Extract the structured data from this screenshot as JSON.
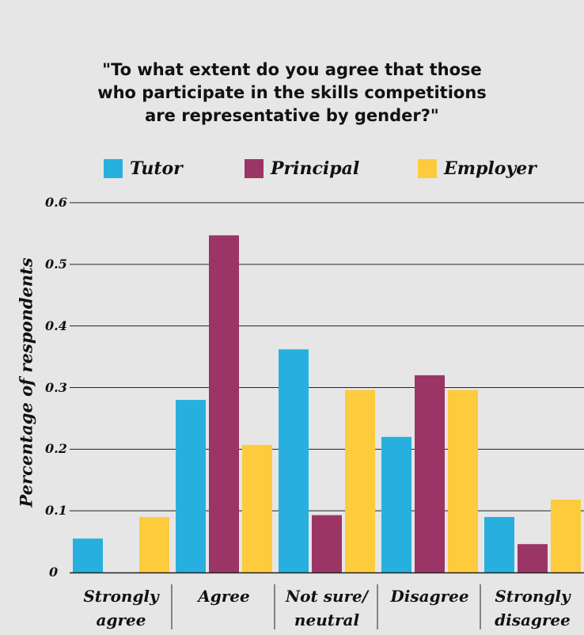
{
  "chart_data": {
    "type": "bar",
    "title_lines": [
      "\"To what extent do you agree that those",
      "who participate in the skills competitions",
      "are representative by gender?\""
    ],
    "ylabel": "Percentage of respondents",
    "ylim": [
      0,
      0.6
    ],
    "yticks": [
      "0",
      "0.1",
      "0.2",
      "0.3",
      "0.4",
      "0.5",
      "0.6"
    ],
    "categories": [
      [
        "Strongly",
        "agree"
      ],
      [
        "Agree"
      ],
      [
        "Not sure/",
        "neutral"
      ],
      [
        "Disagree"
      ],
      [
        "Strongly",
        "disagree"
      ]
    ],
    "series": [
      {
        "name": "Tutor",
        "color": "#27b0df",
        "values": [
          0.055,
          0.28,
          0.362,
          0.22,
          0.09
        ]
      },
      {
        "name": "Principal",
        "color": "#9b3566",
        "values": [
          0,
          0.547,
          0.093,
          0.32,
          0.046
        ]
      },
      {
        "name": "Employer",
        "color": "#fdcb3b",
        "values": [
          0.09,
          0.207,
          0.296,
          0.296,
          0.118
        ]
      }
    ],
    "grid": true,
    "legend_position": "top"
  }
}
